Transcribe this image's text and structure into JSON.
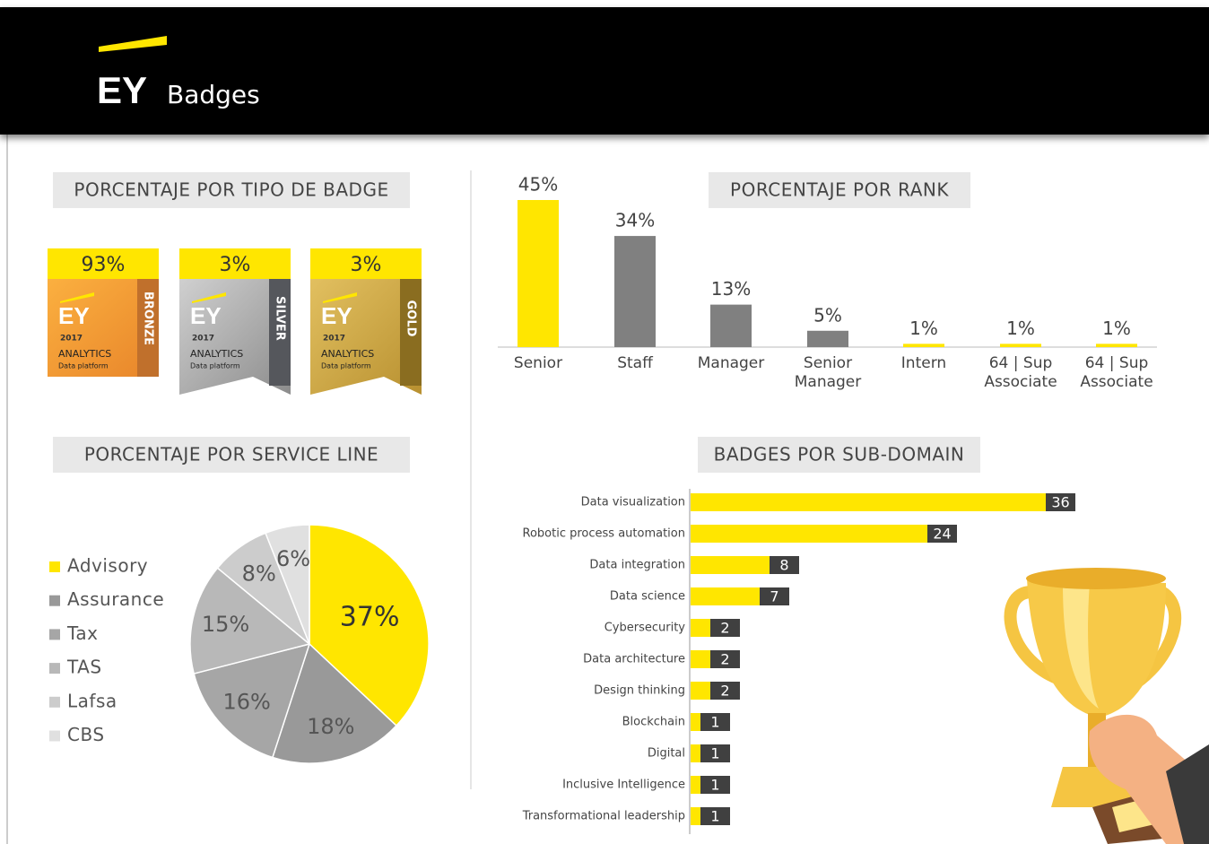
{
  "header": {
    "logo": "EY",
    "title": "Badges"
  },
  "badge_section": {
    "title": "PORCENTAJE POR TIPO DE BADGE",
    "badges": [
      {
        "percent": "93%",
        "level": "BRONZE",
        "logo": "EY",
        "year": "2017",
        "name": "ANALYTICS",
        "subtitle": "Data platform"
      },
      {
        "percent": "3%",
        "level": "SILVER",
        "logo": "EY",
        "year": "2017",
        "name": "ANALYTICS",
        "subtitle": "Data platform"
      },
      {
        "percent": "3%",
        "level": "GOLD",
        "logo": "EY",
        "year": "2017",
        "name": "ANALYTICS",
        "subtitle": "Data platform"
      }
    ]
  },
  "chart_data": [
    {
      "type": "bar",
      "title": "PORCENTAJE POR RANK",
      "categories": [
        "Senior",
        "Staff",
        "Manager",
        "Senior Manager",
        "Intern",
        "64 | Sup Associate",
        "64 | Sup Associate"
      ],
      "values": [
        45,
        34,
        13,
        5,
        1,
        1,
        1
      ],
      "value_labels": [
        "45%",
        "34%",
        "13%",
        "5%",
        "1%",
        "1%",
        "1%"
      ],
      "colors": [
        "#ffe600",
        "#808080",
        "#808080",
        "#808080",
        "#ffe600",
        "#ffe600",
        "#ffe600"
      ]
    },
    {
      "type": "pie",
      "title": "PORCENTAJE POR SERVICE LINE",
      "categories": [
        "Advisory",
        "Assurance",
        "Tax",
        "TAS",
        "Lafsa",
        "CBS"
      ],
      "values": [
        37,
        18,
        16,
        15,
        8,
        6
      ],
      "value_labels": [
        "37%",
        "18%",
        "16%",
        "15%",
        "8%",
        "6%"
      ],
      "colors": [
        "#ffe600",
        "#999999",
        "#a6a6a6",
        "#b8b8b8",
        "#cccccc",
        "#e0e0e0"
      ]
    },
    {
      "type": "hbar",
      "title": "BADGES POR SUB-DOMAIN",
      "categories": [
        "Data visualization",
        "Robotic process automation",
        "Data integration",
        "Data science",
        "Cybersecurity",
        "Data architecture",
        "Design thinking",
        "Blockchain",
        "Digital",
        "Inclusive Intelligence",
        "Transformational leadership"
      ],
      "values": [
        36,
        24,
        8,
        7,
        2,
        2,
        2,
        1,
        1,
        1,
        1
      ],
      "color": "#ffe600",
      "label_color": "#404040"
    }
  ]
}
